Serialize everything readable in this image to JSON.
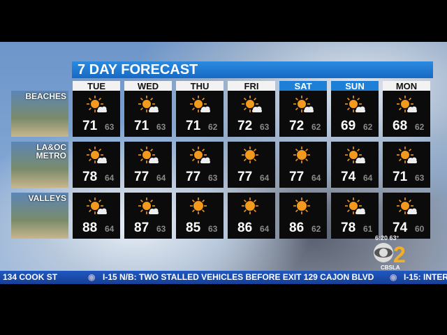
{
  "title": "7 DAY FORECAST",
  "days": [
    {
      "label": "TUE",
      "weekend": false
    },
    {
      "label": "WED",
      "weekend": false
    },
    {
      "label": "THU",
      "weekend": false
    },
    {
      "label": "FRI",
      "weekend": false
    },
    {
      "label": "SAT",
      "weekend": true
    },
    {
      "label": "SUN",
      "weekend": true
    },
    {
      "label": "MON",
      "weekend": false
    }
  ],
  "regions": [
    {
      "label": "BEACHES",
      "icons": [
        "partly-sunny",
        "partly-sunny",
        "partly-sunny",
        "partly-sunny",
        "partly-sunny",
        "partly-sunny",
        "partly-sunny"
      ],
      "highs": [
        "71",
        "71",
        "71",
        "72",
        "72",
        "69",
        "68"
      ],
      "lows": [
        "63",
        "63",
        "62",
        "63",
        "62",
        "62",
        "62"
      ]
    },
    {
      "label": "LA&OC METRO",
      "icons": [
        "partly-sunny",
        "partly-sunny",
        "partly-sunny",
        "sunny",
        "sunny",
        "partly-sunny",
        "partly-sunny"
      ],
      "highs": [
        "78",
        "77",
        "77",
        "77",
        "77",
        "74",
        "71"
      ],
      "lows": [
        "64",
        "64",
        "63",
        "64",
        "64",
        "64",
        "63"
      ]
    },
    {
      "label": "VALLEYS",
      "icons": [
        "partly-sunny",
        "partly-sunny",
        "sunny",
        "sunny",
        "sunny",
        "partly-sunny",
        "partly-sunny"
      ],
      "highs": [
        "88",
        "87",
        "85",
        "86",
        "86",
        "78",
        "74"
      ],
      "lows": [
        "64",
        "63",
        "63",
        "64",
        "62",
        "61",
        "60"
      ]
    }
  ],
  "status": {
    "time": "6:20",
    "temp": "63°"
  },
  "logo": {
    "text": "CBS 2",
    "social": "CBSLA"
  },
  "ticker": [
    "134 COOK ST",
    "I-15 N/B: TWO STALLED VEHICLES BEFORE EXIT 129 CAJON BLVD",
    "I-15: INTER"
  ],
  "colors": {
    "title_bar": "#1e7fd6",
    "ticker": "#1b4fb0",
    "sun": "#f39a1e"
  }
}
